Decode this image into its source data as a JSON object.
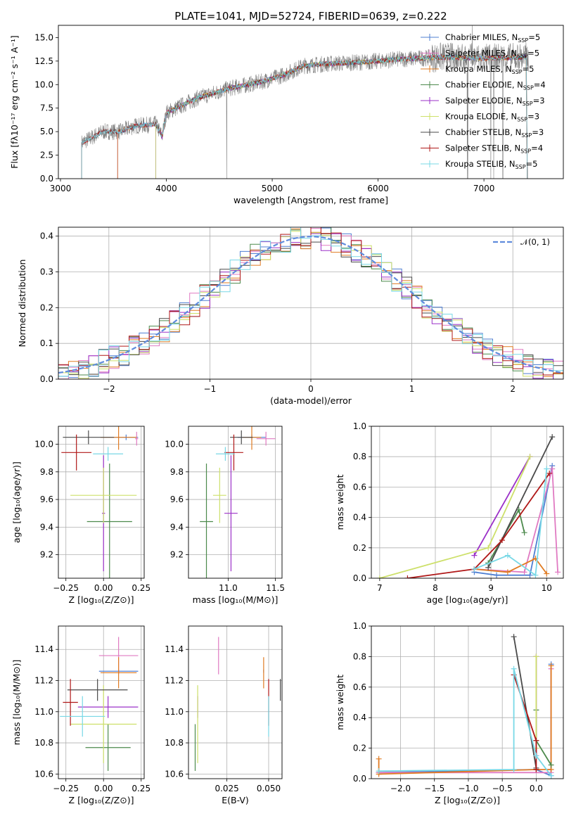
{
  "colors": {
    "Chabrier MILES": "#4f7fd2",
    "Salpeter MILES": "#e07ac2",
    "Kroupa MILES": "#e07b22",
    "Chabrier ELODIE": "#4c8a4c",
    "Salpeter ELODIE": "#9b30c8",
    "Kroupa ELODIE": "#cde06a",
    "Chabrier STELIB": "#4a4a4a",
    "Salpeter STELIB": "#b01818",
    "Kroupa STELIB": "#78d8e6",
    "normal": "#5f8bdc",
    "grid": "#b0b0b0"
  },
  "legend": [
    {
      "model": "Chabrier MILES",
      "label": "Chabrier MILES, N",
      "sub": "SSP",
      "suffix": "=5"
    },
    {
      "model": "Salpeter MILES",
      "label": "Salpeter MILES, N",
      "sub": "SSP",
      "suffix": "=5"
    },
    {
      "model": "Kroupa MILES",
      "label": "Kroupa MILES, N",
      "sub": "SSP",
      "suffix": "=5"
    },
    {
      "model": "Chabrier ELODIE",
      "label": "Chabrier ELODIE, N",
      "sub": "SSP",
      "suffix": "=4"
    },
    {
      "model": "Salpeter ELODIE",
      "label": "Salpeter ELODIE, N",
      "sub": "SSP",
      "suffix": "=3"
    },
    {
      "model": "Kroupa ELODIE",
      "label": "Kroupa ELODIE, N",
      "sub": "SSP",
      "suffix": "=3"
    },
    {
      "model": "Chabrier STELIB",
      "label": "Chabrier STELIB, N",
      "sub": "SSP",
      "suffix": "=3"
    },
    {
      "model": "Salpeter STELIB",
      "label": "Salpeter STELIB, N",
      "sub": "SSP",
      "suffix": "=4"
    },
    {
      "model": "Kroupa STELIB",
      "label": "Kroupa STELIB, N",
      "sub": "SSP",
      "suffix": "=5"
    }
  ],
  "chart_data": [
    {
      "id": "spectrum",
      "type": "line",
      "title": "PLATE=1041, MJD=52724, FIBERID=0639, z=0.222",
      "xlabel": "wavelength [Angstrom, rest frame]",
      "ylabel": "Flux [fλ10⁻¹⁷ erg cm⁻² s⁻¹ A⁻¹]",
      "xlim": [
        2980,
        7750
      ],
      "ylim": [
        0,
        16.3
      ],
      "xticks": [
        3000,
        4000,
        5000,
        6000,
        7000
      ],
      "yticks": [
        0.0,
        2.5,
        5.0,
        7.5,
        10.0,
        12.5,
        15.0
      ],
      "legend_position": "right",
      "grid": false,
      "continuum_points": [
        [
          3200,
          3.8
        ],
        [
          3400,
          5.0
        ],
        [
          3560,
          5.0
        ],
        [
          3700,
          5.6
        ],
        [
          3900,
          5.8
        ],
        [
          3960,
          4.5
        ],
        [
          4000,
          7.0
        ],
        [
          4300,
          8.6
        ],
        [
          4600,
          9.6
        ],
        [
          4900,
          10.3
        ],
        [
          5100,
          11.0
        ],
        [
          5300,
          12.0
        ],
        [
          5500,
          12.2
        ],
        [
          5700,
          12.3
        ],
        [
          5900,
          12.4
        ],
        [
          6200,
          12.7
        ],
        [
          6600,
          12.9
        ],
        [
          7000,
          12.8
        ],
        [
          7400,
          12.9
        ]
      ]
    },
    {
      "id": "residuals",
      "type": "step",
      "xlabel": "(data-model)/error",
      "ylabel": "Normed distribution",
      "xlim": [
        -2.5,
        2.5
      ],
      "ylim": [
        0,
        0.425
      ],
      "xticks": [
        -2,
        -1,
        0,
        1,
        2
      ],
      "yticks": [
        0.0,
        0.1,
        0.2,
        0.3,
        0.4
      ],
      "legend_label": "𝒩(0, 1)",
      "legend_position": "upper-right",
      "grid": true
    },
    {
      "id": "age-vs-Z",
      "type": "errorbar",
      "xlabel": "Z [log₁₀(Z/Z⊙)]",
      "ylabel": "age  [log₁₀(age/yr)]",
      "xlim": [
        -0.3,
        0.27
      ],
      "ylim": [
        9.03,
        10.13
      ],
      "xticks": [
        -0.25,
        0.0,
        0.25
      ],
      "yticks": [
        9.2,
        9.4,
        9.6,
        9.8,
        10.0
      ],
      "grid": true,
      "points": [
        {
          "model": "Chabrier MILES",
          "x": 0.15,
          "xerr": 0.08,
          "y": 10.05,
          "yerr": 0.02
        },
        {
          "model": "Salpeter MILES",
          "x": 0.22,
          "xerr": 0.01,
          "y": 10.04,
          "yerr": 0.05
        },
        {
          "model": "Kroupa MILES",
          "x": 0.1,
          "xerr": 0.12,
          "y": 10.05,
          "yerr": 0.09
        },
        {
          "model": "Chabrier ELODIE",
          "x": 0.04,
          "xerr": 0.15,
          "y": 9.44,
          "yerr": 0.42
        },
        {
          "model": "Salpeter ELODIE",
          "x": 0.0,
          "xerr": 0.01,
          "y": 9.5,
          "yerr": 0.42
        },
        {
          "model": "Kroupa ELODIE",
          "x": 0.0,
          "xerr": 0.22,
          "y": 9.63,
          "yerr": 0.2
        },
        {
          "model": "Chabrier STELIB",
          "x": -0.1,
          "xerr": 0.17,
          "y": 10.05,
          "yerr": 0.05
        },
        {
          "model": "Salpeter STELIB",
          "x": -0.18,
          "xerr": 0.1,
          "y": 9.94,
          "yerr": 0.13
        },
        {
          "model": "Kroupa STELIB",
          "x": 0.03,
          "xerr": 0.1,
          "y": 9.93,
          "yerr": 0.05
        }
      ]
    },
    {
      "id": "age-vs-mass",
      "type": "errorbar",
      "xlabel": "mass [log₁₀(M/M⊙)]",
      "ylabel": "",
      "xlim": [
        10.58,
        11.57
      ],
      "ylim": [
        9.03,
        10.13
      ],
      "xticks": [
        11.0,
        11.5
      ],
      "yticks": [
        9.2,
        9.4,
        9.6,
        9.8,
        10.0
      ],
      "grid": true,
      "points": [
        {
          "model": "Chabrier MILES",
          "x": 11.25,
          "xerr": 0.15,
          "y": 10.05,
          "yerr": 0.02
        },
        {
          "model": "Salpeter MILES",
          "x": 11.4,
          "xerr": 0.1,
          "y": 10.04,
          "yerr": 0.05
        },
        {
          "model": "Kroupa MILES",
          "x": 11.25,
          "xerr": 0.1,
          "y": 10.05,
          "yerr": 0.09
        },
        {
          "model": "Chabrier ELODIE",
          "x": 10.77,
          "xerr": 0.07,
          "y": 9.44,
          "yerr": 0.42
        },
        {
          "model": "Salpeter ELODIE",
          "x": 11.03,
          "xerr": 0.07,
          "y": 9.5,
          "yerr": 0.42
        },
        {
          "model": "Kroupa ELODIE",
          "x": 10.91,
          "xerr": 0.07,
          "y": 9.63,
          "yerr": 0.2
        },
        {
          "model": "Chabrier STELIB",
          "x": 11.14,
          "xerr": 0.12,
          "y": 10.05,
          "yerr": 0.05
        },
        {
          "model": "Salpeter STELIB",
          "x": 11.06,
          "xerr": 0.1,
          "y": 9.94,
          "yerr": 0.13
        },
        {
          "model": "Kroupa STELIB",
          "x": 10.97,
          "xerr": 0.1,
          "y": 9.93,
          "yerr": 0.05
        }
      ]
    },
    {
      "id": "weight-vs-age",
      "type": "line",
      "xlabel": "age  [log₁₀(age/yr)]",
      "ylabel": "mass weight",
      "xlim": [
        6.85,
        10.3
      ],
      "ylim": [
        0,
        1.0
      ],
      "xticks": [
        7,
        8,
        9,
        10
      ],
      "yticks": [
        0.0,
        0.2,
        0.4,
        0.6,
        0.8,
        1.0
      ],
      "grid": true,
      "series": [
        {
          "model": "Chabrier MILES",
          "x": [
            8.7,
            9.1,
            9.7,
            10.1
          ],
          "y": [
            0.04,
            0.02,
            0.02,
            0.74
          ]
        },
        {
          "model": "Salpeter MILES",
          "x": [
            8.7,
            9.6,
            10.1,
            10.2
          ],
          "y": [
            0.06,
            0.04,
            0.72,
            0.04
          ]
        },
        {
          "model": "Kroupa MILES",
          "x": [
            8.7,
            9.3,
            9.8,
            10.0
          ],
          "y": [
            0.06,
            0.04,
            0.13,
            0.03
          ]
        },
        {
          "model": "Chabrier ELODIE",
          "x": [
            8.95,
            9.5,
            9.6
          ],
          "y": [
            0.1,
            0.45,
            0.3
          ]
        },
        {
          "model": "Salpeter ELODIE",
          "x": [
            8.7,
            9.7
          ],
          "y": [
            0.15,
            0.8
          ]
        },
        {
          "model": "Kroupa ELODIE",
          "x": [
            7.0,
            8.95,
            9.7
          ],
          "y": [
            0.0,
            0.2,
            0.8
          ]
        },
        {
          "model": "Chabrier STELIB",
          "x": [
            8.95,
            10.1
          ],
          "y": [
            0.07,
            0.93
          ]
        },
        {
          "model": "Salpeter STELIB",
          "x": [
            7.5,
            8.7,
            9.2,
            10.05
          ],
          "y": [
            0.0,
            0.06,
            0.25,
            0.69
          ]
        },
        {
          "model": "Kroupa STELIB",
          "x": [
            8.7,
            9.3,
            9.8,
            10.0
          ],
          "y": [
            0.06,
            0.15,
            0.02,
            0.72
          ]
        }
      ]
    },
    {
      "id": "mass-vs-Z",
      "type": "errorbar",
      "xlabel": "Z [log₁₀(Z/Z⊙)]",
      "ylabel": "mass [log₁₀(M/M⊙)]",
      "xlim": [
        -0.3,
        0.27
      ],
      "ylim": [
        10.57,
        11.55
      ],
      "xticks": [
        -0.25,
        0.0,
        0.25
      ],
      "yticks": [
        10.6,
        10.8,
        11.0,
        11.2,
        11.4
      ],
      "grid": true,
      "points": [
        {
          "model": "Chabrier MILES",
          "x": 0.1,
          "xerr": 0.13,
          "y": 11.26,
          "yerr": 0.01
        },
        {
          "model": "Salpeter MILES",
          "x": 0.1,
          "xerr": 0.13,
          "y": 11.36,
          "yerr": 0.12
        },
        {
          "model": "Kroupa MILES",
          "x": 0.1,
          "xerr": 0.12,
          "y": 11.25,
          "yerr": 0.1
        },
        {
          "model": "Chabrier ELODIE",
          "x": 0.03,
          "xerr": 0.15,
          "y": 10.77,
          "yerr": 0.15
        },
        {
          "model": "Salpeter ELODIE",
          "x": 0.03,
          "xerr": 0.2,
          "y": 11.03,
          "yerr": 0.07
        },
        {
          "model": "Kroupa ELODIE",
          "x": 0.0,
          "xerr": 0.22,
          "y": 10.92,
          "yerr": 0.25
        },
        {
          "model": "Chabrier STELIB",
          "x": -0.04,
          "xerr": 0.2,
          "y": 11.14,
          "yerr": 0.07
        },
        {
          "model": "Salpeter STELIB",
          "x": -0.22,
          "xerr": 0.05,
          "y": 11.06,
          "yerr": 0.15
        },
        {
          "model": "Kroupa STELIB",
          "x": -0.14,
          "xerr": 0.15,
          "y": 10.97,
          "yerr": 0.13
        }
      ]
    },
    {
      "id": "mass-vs-EBV",
      "type": "errorbar",
      "xlabel": "E(B-V)",
      "ylabel": "",
      "xlim": [
        0.002,
        0.058
      ],
      "ylim": [
        10.57,
        11.55
      ],
      "xticks": [
        0.025,
        0.05
      ],
      "yticks": [
        10.6,
        10.8,
        11.0,
        11.2,
        11.4
      ],
      "grid": true,
      "points": [
        {
          "model": "Chabrier MILES",
          "x": 0.047,
          "xerr": 0.0,
          "y": 11.26,
          "yerr": 0.01
        },
        {
          "model": "Salpeter MILES",
          "x": 0.02,
          "xerr": 0.0,
          "y": 11.36,
          "yerr": 0.12
        },
        {
          "model": "Kroupa MILES",
          "x": 0.047,
          "xerr": 0.0,
          "y": 11.25,
          "yerr": 0.1
        },
        {
          "model": "Chabrier ELODIE",
          "x": 0.006,
          "xerr": 0.0,
          "y": 10.77,
          "yerr": 0.15
        },
        {
          "model": "Salpeter ELODIE",
          "x": 0.0075,
          "xerr": 0.0,
          "y": 11.03,
          "yerr": 0.07
        },
        {
          "model": "Kroupa ELODIE",
          "x": 0.0075,
          "xerr": 0.0,
          "y": 10.92,
          "yerr": 0.25
        },
        {
          "model": "Chabrier STELIB",
          "x": 0.057,
          "xerr": 0.0,
          "y": 11.14,
          "yerr": 0.07
        },
        {
          "model": "Salpeter STELIB",
          "x": 0.05,
          "xerr": 0.0,
          "y": 11.06,
          "yerr": 0.15
        },
        {
          "model": "Kroupa STELIB",
          "x": 0.05,
          "xerr": 0.0,
          "y": 10.97,
          "yerr": 0.13
        }
      ]
    },
    {
      "id": "weight-vs-Z",
      "type": "line",
      "xlabel": "Z [log₁₀(Z/Z⊙)]",
      "ylabel": "mass weight",
      "xlim": [
        -2.43,
        0.4
      ],
      "ylim": [
        0,
        1.0
      ],
      "xticks": [
        -2.0,
        -1.5,
        -1.0,
        -0.5,
        0.0
      ],
      "yticks": [
        0.0,
        0.2,
        0.4,
        0.6,
        0.8,
        1.0
      ],
      "grid": true,
      "series": [
        {
          "model": "Chabrier MILES",
          "x": [
            -2.32,
            0.0,
            0.22,
            0.22
          ],
          "y": [
            0.04,
            0.06,
            0.02,
            0.75
          ]
        },
        {
          "model": "Salpeter MILES",
          "x": [
            -2.32,
            0.22,
            0.22
          ],
          "y": [
            0.04,
            0.04,
            0.72
          ]
        },
        {
          "model": "Kroupa MILES",
          "x": [
            -2.32,
            -2.32,
            0.0,
            0.22,
            0.22
          ],
          "y": [
            0.13,
            0.03,
            0.06,
            0.06,
            0.74
          ]
        },
        {
          "model": "Chabrier ELODIE",
          "x": [
            0.0,
            0.0,
            0.22
          ],
          "y": [
            0.45,
            0.25,
            0.09
          ]
        },
        {
          "model": "Salpeter ELODIE",
          "x": [
            0.0,
            0.0
          ],
          "y": [
            0.15,
            0.8
          ]
        },
        {
          "model": "Kroupa ELODIE",
          "x": [
            0.0,
            0.0
          ],
          "y": [
            0.8,
            0.2
          ]
        },
        {
          "model": "Chabrier STELIB",
          "x": [
            -0.33,
            0.0
          ],
          "y": [
            0.93,
            0.07
          ]
        },
        {
          "model": "Salpeter STELIB",
          "x": [
            -0.33,
            0.0,
            0.0
          ],
          "y": [
            0.68,
            0.25,
            0.06
          ]
        },
        {
          "model": "Kroupa STELIB",
          "x": [
            -2.32,
            -0.33,
            -0.33,
            0.0,
            0.22
          ],
          "y": [
            0.05,
            0.06,
            0.72,
            0.15,
            0.02
          ]
        }
      ]
    }
  ]
}
